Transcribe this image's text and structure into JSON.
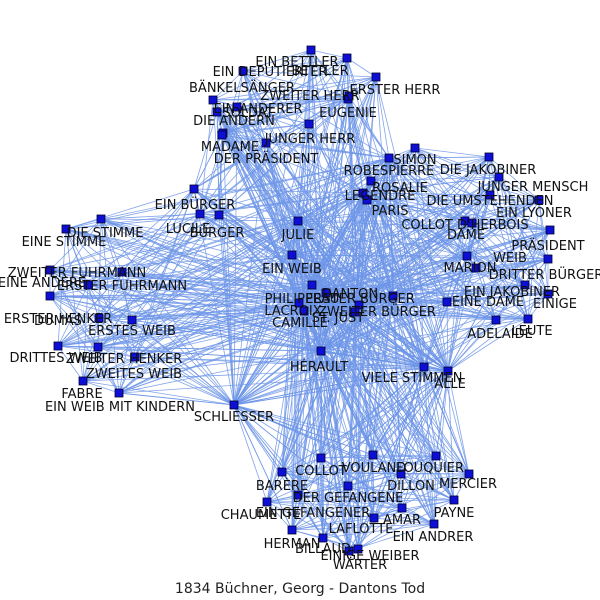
{
  "caption": "1834  Büchner, Georg  -  Dantons Tod",
  "colors": {
    "edge": "#6d95e8",
    "node": "#0d0fd4",
    "text": "#111111"
  },
  "nodes": [
    {
      "label": "EIN BETTLER"
    },
    {
      "label": "BETTLER"
    },
    {
      "label": "EIN DEPUTIERTER"
    },
    {
      "label": "ERSTER HERR"
    },
    {
      "label": "BÄNKELSÄNGER"
    },
    {
      "label": "ZWEITER HERR"
    },
    {
      "label": "EIN ANDERER"
    },
    {
      "label": "SOLDAT"
    },
    {
      "label": "EUGENIE"
    },
    {
      "label": "DIE ANDERN"
    },
    {
      "label": "JUNGER HERR"
    },
    {
      "label": "MADAME"
    },
    {
      "label": "DER PRÄSIDENT"
    },
    {
      "label": "SIMON"
    },
    {
      "label": "ROBESPIERRE"
    },
    {
      "label": "DIE JAKOBINER"
    },
    {
      "label": "ROSALIE"
    },
    {
      "label": "JUNGER MENSCH"
    },
    {
      "label": "LEGENDRE"
    },
    {
      "label": "DIE UMSTEHENDEN"
    },
    {
      "label": "PARIS"
    },
    {
      "label": "EIN LYONER"
    },
    {
      "label": "COLLOT D'HERBOIS"
    },
    {
      "label": "DAME"
    },
    {
      "label": "PRÄSIDENT"
    },
    {
      "label": "EIN BÜRGER"
    },
    {
      "label": "LUCILE"
    },
    {
      "label": "BÜRGER"
    },
    {
      "label": "JULIE"
    },
    {
      "label": "EINE STIMME"
    },
    {
      "label": "DIE STIMME"
    },
    {
      "label": "WEIB"
    },
    {
      "label": "MARION"
    },
    {
      "label": "DRITTER BÜRGER"
    },
    {
      "label": "EIN WEIB"
    },
    {
      "label": "ZWEITER FUHRMANN"
    },
    {
      "label": "EINE ANDERE"
    },
    {
      "label": "ERSTER FUHRMANN"
    },
    {
      "label": "EIN JAKOBINER"
    },
    {
      "label": "PHILIPPEAU"
    },
    {
      "label": "DANTON"
    },
    {
      "label": "ERSTER BÜRGER"
    },
    {
      "label": "EINE DAME"
    },
    {
      "label": "EINIGE"
    },
    {
      "label": "LACROIX"
    },
    {
      "label": "ZWEITER BÜRGER"
    },
    {
      "label": "CAMILLE"
    },
    {
      "label": "ST. JUST"
    },
    {
      "label": "ERSTER HENKER"
    },
    {
      "label": "DUMAS"
    },
    {
      "label": "ERSTES WEIB"
    },
    {
      "label": "LEUTE"
    },
    {
      "label": "ADELAIDE"
    },
    {
      "label": "DRITTES WEIB"
    },
    {
      "label": "ZWEITER HENKER"
    },
    {
      "label": "ZWEITES WEIB"
    },
    {
      "label": "HÉRAULT"
    },
    {
      "label": "VIELE STIMMEN"
    },
    {
      "label": "ALLE"
    },
    {
      "label": "FABRE"
    },
    {
      "label": "EIN WEIB MIT KINDERN"
    },
    {
      "label": "SCHLIESSER"
    },
    {
      "label": "COLLOT"
    },
    {
      "label": "VOULAND"
    },
    {
      "label": "FOUQUIER"
    },
    {
      "label": "MERCIER"
    },
    {
      "label": "BARÈRE"
    },
    {
      "label": "DILLON"
    },
    {
      "label": "DER GEFANGENE"
    },
    {
      "label": "PAYNE"
    },
    {
      "label": "EIN GEFANGENER"
    },
    {
      "label": "CHAUMETTE"
    },
    {
      "label": "AMAR"
    },
    {
      "label": "LAFLOTTE"
    },
    {
      "label": "EIN ANDRER"
    },
    {
      "label": "HERMAN"
    },
    {
      "label": "BILLAUD"
    },
    {
      "label": "EINIGE WEIBER"
    },
    {
      "label": "WÄRTER"
    }
  ]
}
